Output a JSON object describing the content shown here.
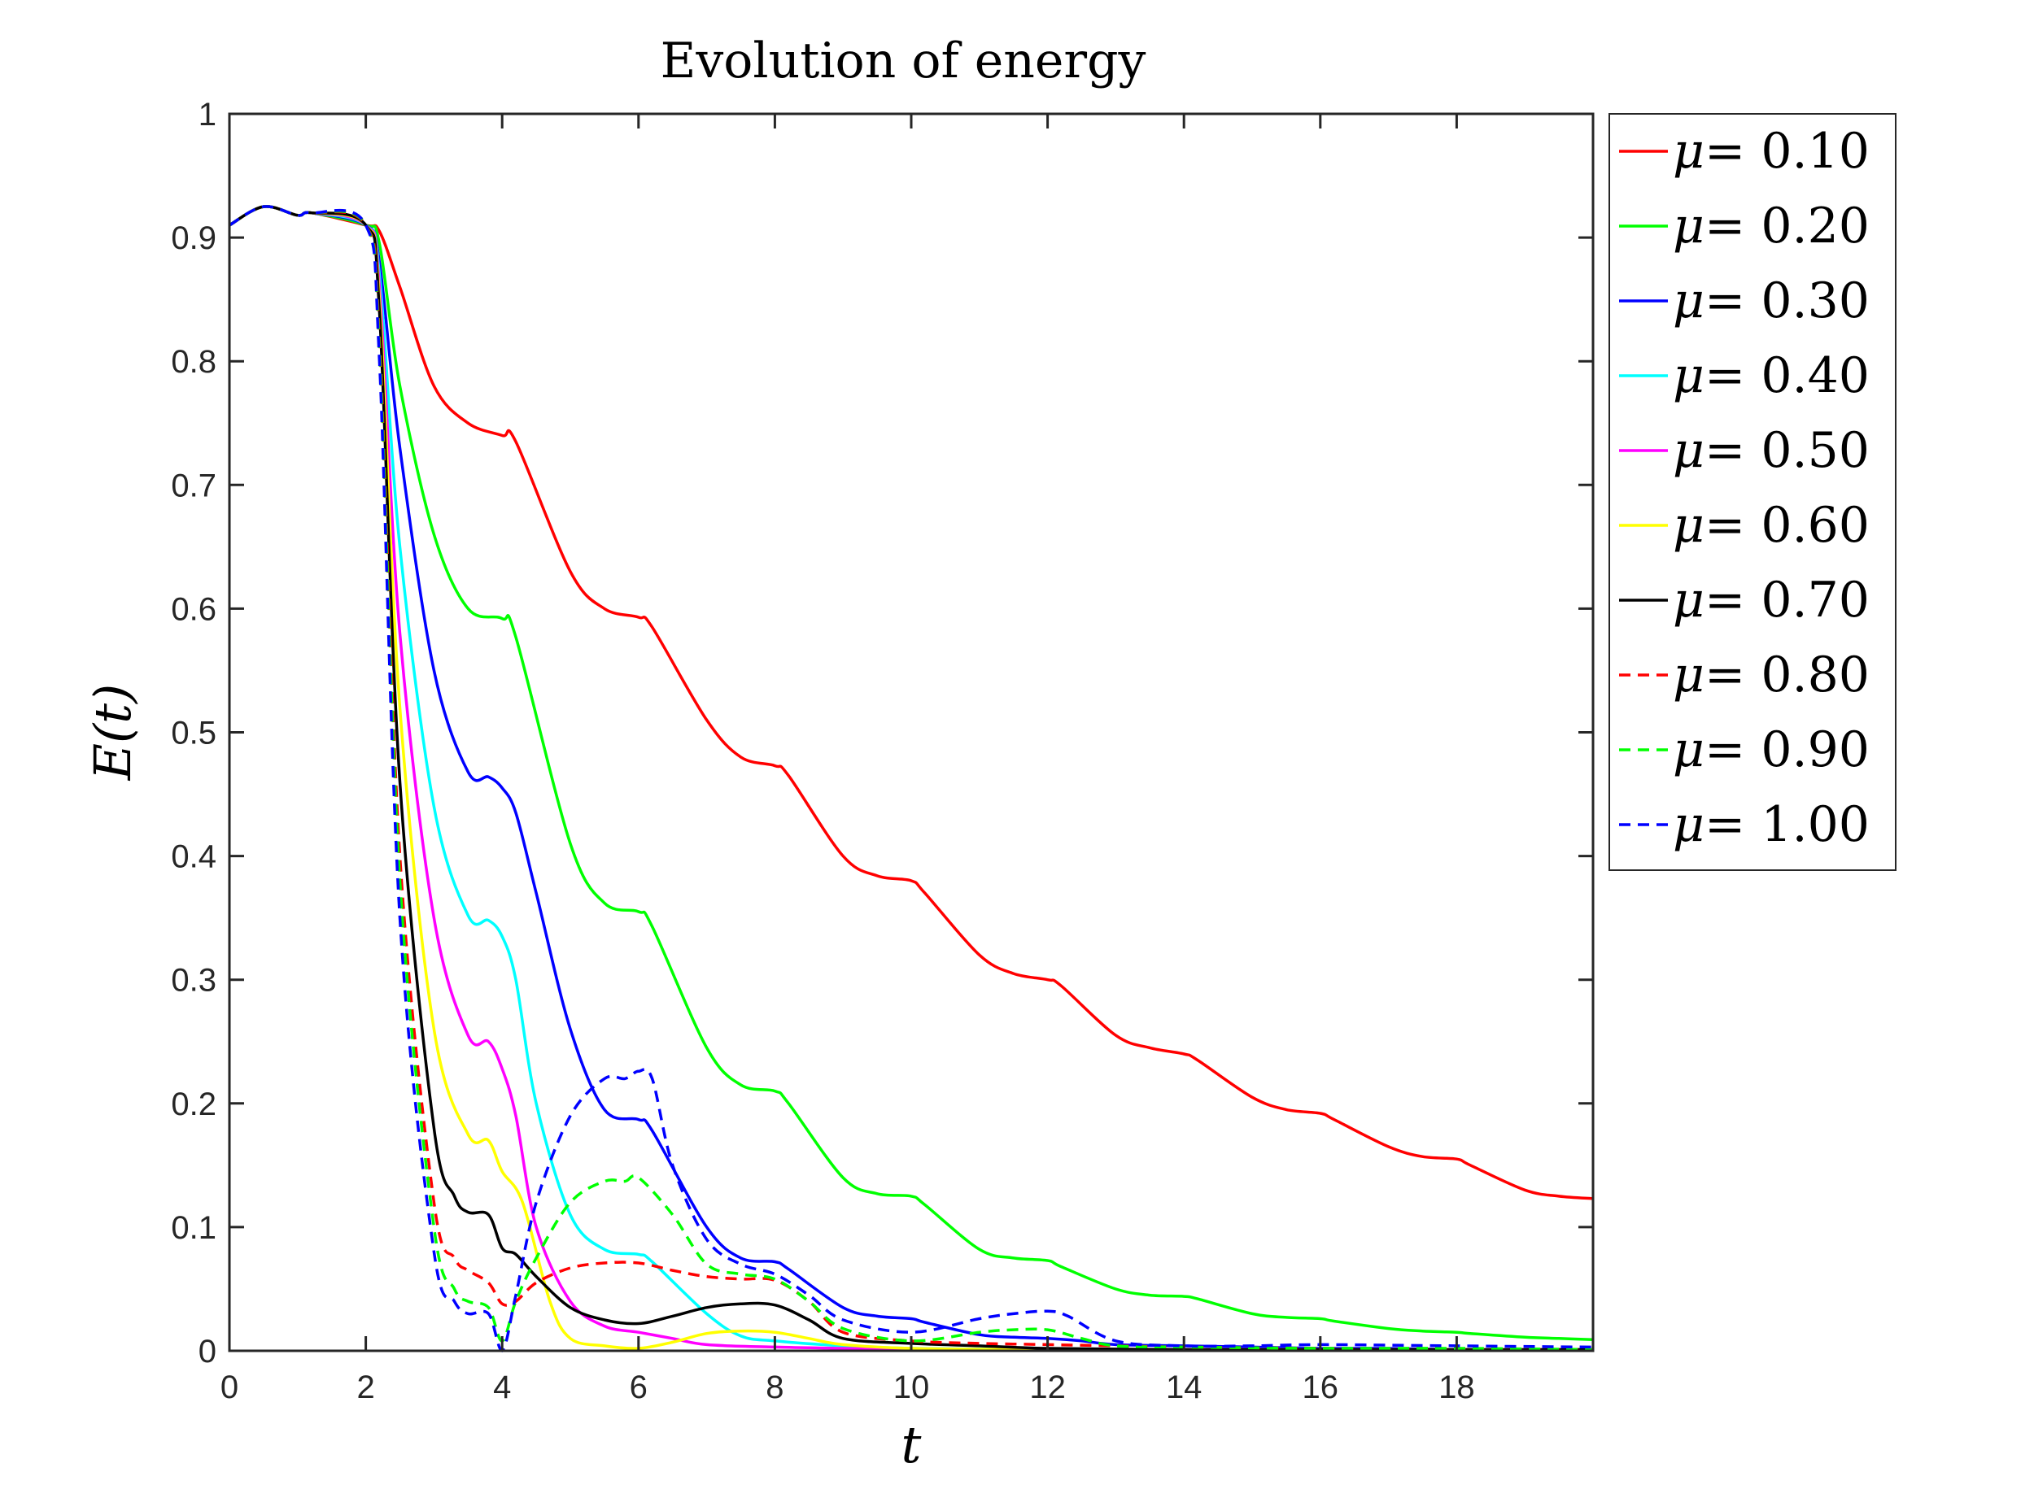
{
  "chart_data": {
    "type": "line",
    "title": "Evolution of energy",
    "xlabel": "t",
    "ylabel": "E(t)",
    "xlim": [
      0,
      20
    ],
    "ylim": [
      0,
      1
    ],
    "xticks": [
      0,
      2,
      4,
      6,
      8,
      10,
      12,
      14,
      16,
      18
    ],
    "xtick_labels": [
      "0",
      "2",
      "4",
      "6",
      "8",
      "10",
      "12",
      "14",
      "16",
      "18"
    ],
    "yticks": [
      0,
      0.1,
      0.2,
      0.3,
      0.4,
      0.5,
      0.6,
      0.7,
      0.8,
      0.9,
      1
    ],
    "ytick_labels": [
      "0",
      "0.1",
      "0.2",
      "0.3",
      "0.4",
      "0.5",
      "0.6",
      "0.7",
      "0.8",
      "0.9",
      "1"
    ],
    "grid": false,
    "legend_position": "outside-top-right",
    "legend_symbol": "μ",
    "series": [
      {
        "name": "μ= 0.10",
        "label_value": "= 0.10",
        "color": "#ff0000",
        "dash": "solid",
        "x": [
          0,
          0.5,
          1,
          1.2,
          2,
          2.2,
          2.5,
          3,
          3.5,
          4,
          4.2,
          5,
          5.5,
          6,
          6.2,
          7,
          7.5,
          8,
          8.2,
          9,
          9.5,
          10,
          10.2,
          11,
          11.5,
          12,
          12.2,
          13,
          13.5,
          14,
          14.2,
          15,
          15.5,
          16,
          16.2,
          17,
          17.5,
          18,
          18.2,
          19,
          19.5,
          20
        ],
        "y": [
          0.91,
          0.925,
          0.918,
          0.92,
          0.91,
          0.905,
          0.86,
          0.78,
          0.75,
          0.74,
          0.735,
          0.63,
          0.6,
          0.593,
          0.585,
          0.51,
          0.48,
          0.473,
          0.465,
          0.4,
          0.384,
          0.38,
          0.37,
          0.32,
          0.305,
          0.3,
          0.295,
          0.255,
          0.245,
          0.24,
          0.235,
          0.205,
          0.195,
          0.192,
          0.187,
          0.165,
          0.157,
          0.155,
          0.15,
          0.13,
          0.125,
          0.123
        ]
      },
      {
        "name": "μ= 0.20",
        "label_value": "= 0.20",
        "color": "#00ff00",
        "dash": "solid",
        "x": [
          0,
          0.5,
          1,
          1.2,
          2,
          2.2,
          2.5,
          3,
          3.5,
          4,
          4.2,
          5,
          5.5,
          6,
          6.2,
          7,
          7.5,
          8,
          8.2,
          9,
          9.5,
          10,
          10.2,
          11,
          11.5,
          12,
          12.2,
          13,
          13.5,
          14,
          14.2,
          15,
          15.5,
          16,
          16.2,
          17,
          17.5,
          18,
          18.2,
          19,
          19.5,
          20
        ],
        "y": [
          0.91,
          0.925,
          0.918,
          0.92,
          0.91,
          0.895,
          0.78,
          0.66,
          0.6,
          0.592,
          0.577,
          0.41,
          0.362,
          0.355,
          0.343,
          0.245,
          0.215,
          0.21,
          0.2,
          0.14,
          0.127,
          0.125,
          0.118,
          0.082,
          0.075,
          0.073,
          0.068,
          0.05,
          0.045,
          0.044,
          0.042,
          0.03,
          0.027,
          0.026,
          0.024,
          0.018,
          0.016,
          0.015,
          0.014,
          0.011,
          0.01,
          0.009
        ]
      },
      {
        "name": "μ= 0.30",
        "label_value": "= 0.30",
        "color": "#0000ff",
        "dash": "solid",
        "x": [
          0,
          0.5,
          1,
          1.2,
          2,
          2.2,
          2.5,
          3,
          3.5,
          3.8,
          4,
          4.2,
          4.5,
          5,
          5.5,
          6,
          6.2,
          7,
          7.5,
          8,
          8.2,
          9,
          9.5,
          10,
          10.2,
          11,
          11.5,
          12,
          12.5,
          13,
          14,
          15,
          16,
          17,
          18,
          19,
          20
        ],
        "y": [
          0.91,
          0.925,
          0.918,
          0.92,
          0.91,
          0.88,
          0.73,
          0.55,
          0.468,
          0.464,
          0.455,
          0.435,
          0.37,
          0.26,
          0.195,
          0.187,
          0.178,
          0.1,
          0.075,
          0.072,
          0.066,
          0.035,
          0.028,
          0.026,
          0.023,
          0.013,
          0.011,
          0.01,
          0.008,
          0.005,
          0.004,
          0.003,
          0.002,
          0.002,
          0.001,
          0.001,
          0.001
        ]
      },
      {
        "name": "μ= 0.40",
        "label_value": "= 0.40",
        "color": "#00ffff",
        "dash": "solid",
        "x": [
          0,
          0.5,
          1,
          1.2,
          2,
          2.2,
          2.5,
          3,
          3.5,
          3.8,
          4,
          4.2,
          4.5,
          5,
          5.5,
          6,
          6.2,
          7,
          7.5,
          8,
          9,
          10,
          12,
          14,
          16,
          18,
          20
        ],
        "y": [
          0.91,
          0.925,
          0.918,
          0.92,
          0.91,
          0.87,
          0.65,
          0.44,
          0.352,
          0.348,
          0.335,
          0.3,
          0.2,
          0.11,
          0.082,
          0.078,
          0.072,
          0.03,
          0.012,
          0.008,
          0.004,
          0.002,
          0.001,
          0.001,
          0.001,
          0.001,
          0.001
        ]
      },
      {
        "name": "μ= 0.50",
        "label_value": "= 0.50",
        "color": "#ff00ff",
        "dash": "solid",
        "x": [
          0,
          0.5,
          1,
          1.2,
          2,
          2.2,
          2.5,
          3,
          3.5,
          3.8,
          4,
          4.2,
          4.5,
          5,
          5.5,
          6,
          6.5,
          7,
          8,
          9,
          10,
          12,
          14,
          16,
          18,
          20
        ],
        "y": [
          0.91,
          0.925,
          0.918,
          0.92,
          0.91,
          0.86,
          0.58,
          0.35,
          0.255,
          0.25,
          0.228,
          0.19,
          0.1,
          0.04,
          0.02,
          0.015,
          0.01,
          0.005,
          0.003,
          0.002,
          0.001,
          0.001,
          0.001,
          0.001,
          0.001,
          0.001
        ]
      },
      {
        "name": "μ= 0.60",
        "label_value": "= 0.60",
        "color": "#ffff00",
        "dash": "solid",
        "x": [
          0,
          0.5,
          1,
          1.2,
          2,
          2.2,
          2.5,
          3,
          3.5,
          3.8,
          4,
          4.3,
          4.7,
          5,
          5.5,
          6,
          6.5,
          7,
          7.5,
          8,
          8.5,
          9,
          10,
          12,
          14,
          16,
          18,
          20
        ],
        "y": [
          0.91,
          0.925,
          0.918,
          0.92,
          0.91,
          0.85,
          0.52,
          0.26,
          0.175,
          0.17,
          0.145,
          0.12,
          0.04,
          0.01,
          0.004,
          0.002,
          0.007,
          0.014,
          0.016,
          0.015,
          0.01,
          0.005,
          0.002,
          0.001,
          0.001,
          0.001,
          0.001,
          0.001
        ]
      },
      {
        "name": "μ= 0.70",
        "label_value": "= 0.70",
        "color": "#000000",
        "dash": "solid",
        "x": [
          0,
          0.5,
          1,
          1.2,
          2,
          2.2,
          2.5,
          3,
          3.3,
          3.5,
          3.8,
          4,
          4.2,
          4.5,
          5,
          5.5,
          6,
          6.5,
          7,
          7.5,
          8,
          8.5,
          9,
          10,
          11,
          12,
          14,
          16,
          18,
          20
        ],
        "y": [
          0.91,
          0.925,
          0.918,
          0.92,
          0.91,
          0.84,
          0.46,
          0.18,
          0.125,
          0.112,
          0.11,
          0.083,
          0.078,
          0.06,
          0.035,
          0.025,
          0.022,
          0.028,
          0.035,
          0.038,
          0.037,
          0.025,
          0.01,
          0.006,
          0.004,
          0.002,
          0.001,
          0.001,
          0.001,
          0.001
        ]
      },
      {
        "name": "μ= 0.80",
        "label_value": "= 0.80",
        "color": "#ff0000",
        "dash": "dashed",
        "x": [
          0,
          0.5,
          1,
          1.2,
          2,
          2.2,
          2.5,
          3,
          3.3,
          3.5,
          3.8,
          4,
          4.2,
          4.5,
          5,
          5.5,
          6,
          6.5,
          7,
          7.5,
          8,
          8.5,
          9,
          10,
          11,
          12,
          13,
          14,
          16,
          18,
          20
        ],
        "y": [
          0.91,
          0.925,
          0.918,
          0.92,
          0.91,
          0.82,
          0.4,
          0.12,
          0.075,
          0.065,
          0.055,
          0.038,
          0.04,
          0.055,
          0.067,
          0.071,
          0.071,
          0.065,
          0.06,
          0.058,
          0.057,
          0.04,
          0.015,
          0.008,
          0.006,
          0.005,
          0.004,
          0.003,
          0.002,
          0.001,
          0.001
        ]
      },
      {
        "name": "μ= 0.90",
        "label_value": "= 0.90",
        "color": "#00ff00",
        "dash": "dashed",
        "x": [
          0,
          0.5,
          1,
          1.2,
          2,
          2.2,
          2.5,
          3,
          3.3,
          3.5,
          3.8,
          4,
          4.2,
          4.5,
          5,
          5.5,
          5.8,
          6,
          6.5,
          7,
          7.5,
          8,
          8.5,
          9,
          10,
          11,
          11.5,
          12,
          12.5,
          13,
          14,
          16,
          18,
          20
        ],
        "y": [
          0.91,
          0.925,
          0.918,
          0.92,
          0.91,
          0.81,
          0.38,
          0.1,
          0.05,
          0.04,
          0.035,
          0.008,
          0.04,
          0.075,
          0.12,
          0.137,
          0.137,
          0.14,
          0.11,
          0.07,
          0.062,
          0.058,
          0.04,
          0.018,
          0.008,
          0.015,
          0.017,
          0.017,
          0.01,
          0.004,
          0.003,
          0.002,
          0.002,
          0.001
        ]
      },
      {
        "name": "μ= 1.00",
        "label_value": "= 1.00",
        "color": "#0000ff",
        "dash": "dashed",
        "x": [
          0,
          0.5,
          1,
          1.2,
          2,
          2.2,
          2.5,
          3,
          3.3,
          3.5,
          3.8,
          4,
          4.2,
          4.5,
          5,
          5.5,
          5.8,
          6,
          6.2,
          6.5,
          7,
          7.5,
          8,
          8.5,
          9,
          10,
          11,
          11.5,
          12,
          12.3,
          13,
          14,
          15,
          16,
          18,
          20
        ],
        "y": [
          0.91,
          0.925,
          0.918,
          0.92,
          0.91,
          0.8,
          0.35,
          0.08,
          0.04,
          0.03,
          0.03,
          0.0,
          0.045,
          0.12,
          0.19,
          0.22,
          0.22,
          0.226,
          0.22,
          0.15,
          0.09,
          0.07,
          0.062,
          0.045,
          0.025,
          0.015,
          0.026,
          0.03,
          0.032,
          0.028,
          0.008,
          0.004,
          0.004,
          0.005,
          0.004,
          0.003
        ]
      }
    ]
  }
}
